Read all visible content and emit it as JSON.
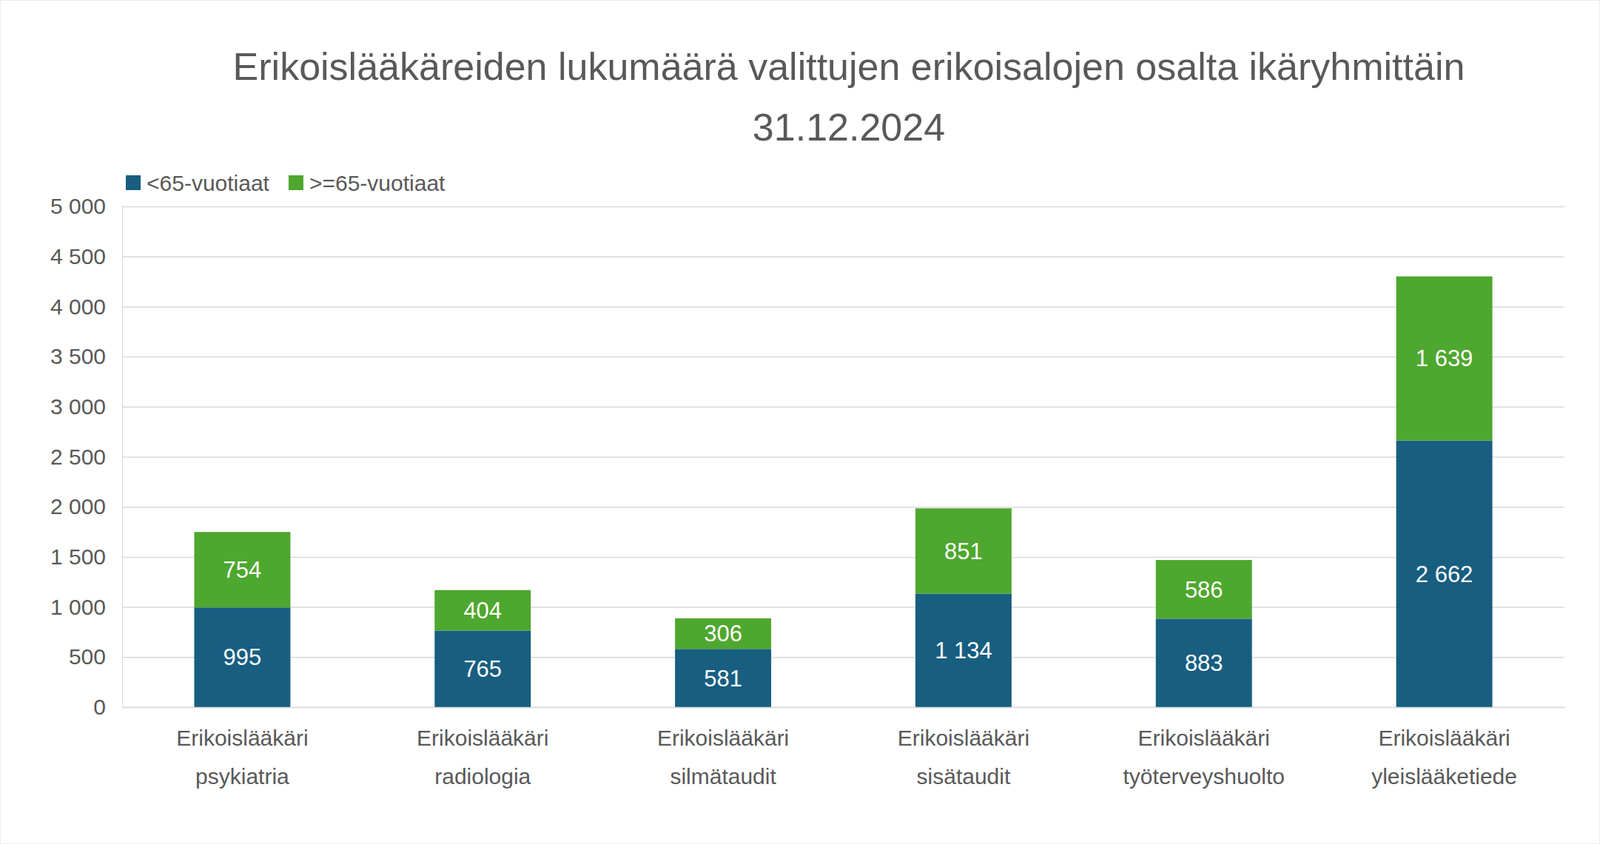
{
  "chart_data": {
    "type": "bar",
    "title": "Erikoislääkäreiden lukumäärä valittujen erikoisalojen osalta ikäryhmittäin 31.12.2024",
    "categories": [
      "Erikoislääkäri psykiatria",
      "Erikoislääkäri radiologia",
      "Erikoislääkäri silmätaudit",
      "Erikoislääkäri sisätaudit",
      "Erikoislääkäri työterveyshuolto",
      "Erikoislääkäri yleislääketiede"
    ],
    "series": [
      {
        "name": "<65-vuotiaat",
        "color": "#175e80",
        "values": [
          995,
          765,
          581,
          1134,
          883,
          2662
        ],
        "value_labels": [
          "995",
          "765",
          "581",
          "1 134",
          "883",
          "2 662"
        ]
      },
      {
        "name": ">=65-vuotiaat",
        "color": "#4ea72e",
        "values": [
          754,
          404,
          306,
          851,
          586,
          1639
        ],
        "value_labels": [
          "754",
          "404",
          "306",
          "851",
          "586",
          "1 639"
        ]
      }
    ],
    "stacked": true,
    "data_labels": true,
    "legend": "top-left",
    "grid": true,
    "ylim": [
      0,
      5000
    ],
    "yticks": [
      0,
      500,
      {
        "value": 1000,
        "label": "1 000"
      },
      {
        "value": 1500,
        "label": "1 500"
      },
      {
        "value": 2000,
        "label": "2 000"
      },
      {
        "value": 2500,
        "label": "2 500"
      },
      {
        "value": 3000,
        "label": "3 000"
      },
      {
        "value": 3500,
        "label": "3 500"
      },
      {
        "value": 4000,
        "label": "4 000"
      },
      {
        "value": 4500,
        "label": "4 500"
      },
      {
        "value": 5000,
        "label": "5 000"
      }
    ]
  }
}
